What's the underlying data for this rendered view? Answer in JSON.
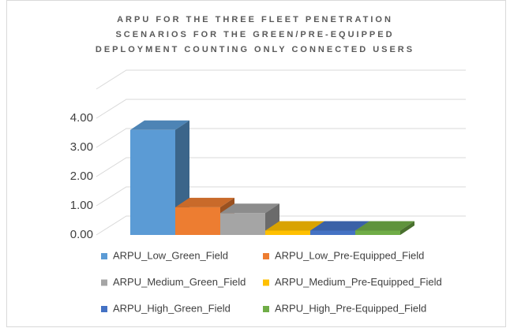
{
  "chart_data": {
    "type": "bar",
    "title": "ARPU FOR THE THREE FLEET PENETRATION SCENARIOS FOR THE GREEN/PRE-EQUIPPED DEPLOYMENT COUNTING ONLY CONNECTED USERS",
    "series": [
      {
        "name": "ARPU_Low_Green_Field",
        "color": "#5b9bd5",
        "values": [
          3.6
        ]
      },
      {
        "name": "ARPU_Low_Pre-Equipped_Field",
        "color": "#ed7d31",
        "values": [
          0.95
        ]
      },
      {
        "name": "ARPU_Medium_Green_Field",
        "color": "#a5a5a5",
        "values": [
          0.75
        ]
      },
      {
        "name": "ARPU_Medium_Pre-Equipped_Field",
        "color": "#ffc000",
        "values": [
          0.15
        ]
      },
      {
        "name": "ARPU_High_Green_Field",
        "color": "#4472c4",
        "values": [
          0.15
        ]
      },
      {
        "name": "ARPU_High_Pre-Equipped_Field",
        "color": "#70ad47",
        "values": [
          0.15
        ]
      }
    ],
    "ylim": [
      0,
      5
    ],
    "yticks": [
      {
        "value": 0,
        "label": "0.00"
      },
      {
        "value": 1,
        "label": "1.00"
      },
      {
        "value": 2,
        "label": "2.00"
      },
      {
        "value": 3,
        "label": "3.00"
      },
      {
        "value": 4,
        "label": "4.00"
      }
    ],
    "grid": true
  }
}
